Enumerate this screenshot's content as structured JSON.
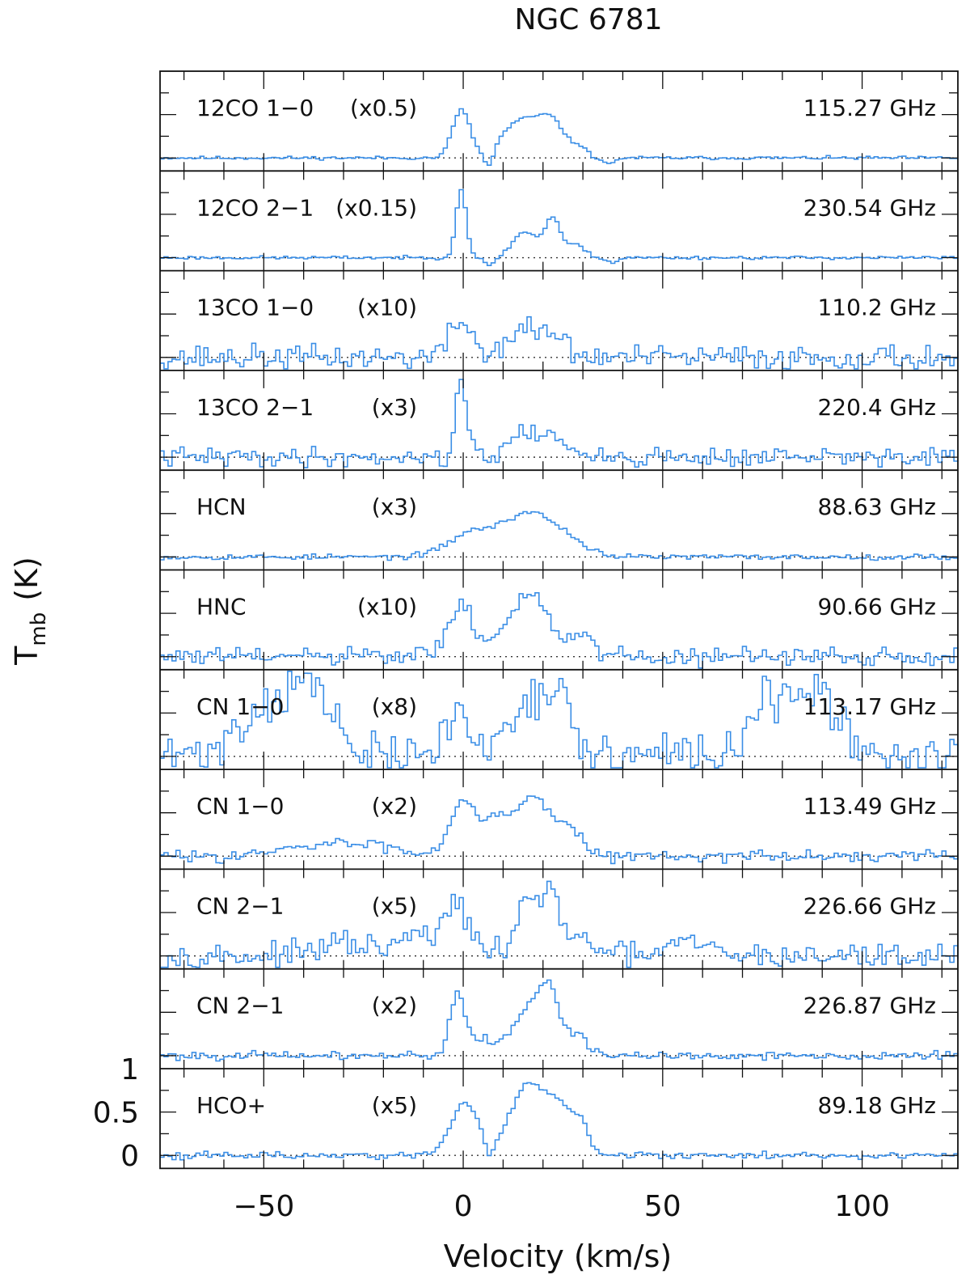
{
  "chart_data": {
    "type": "line",
    "title": "NGC 6781",
    "xlabel": "Velocity (km/s)",
    "ylabel": "T",
    "ylabel_subscript": "mb",
    "ylabel_unit": "(K)",
    "xlim": [
      -76,
      124
    ],
    "x_ticks": [
      "−50",
      "0",
      "50",
      "100"
    ],
    "x_tick_values": [
      -50,
      0,
      50,
      100
    ],
    "y_ticks_bottom_panel": [
      "1",
      "0.5",
      "0"
    ],
    "y_tick_values": [
      1,
      0.5,
      0
    ],
    "ylim": [
      -0.15,
      1.0
    ],
    "line_color": "#3a8ee6",
    "panels": [
      {
        "line": "12CO 1−0",
        "scale": "(x0.5)",
        "frequency": "115.27 GHz",
        "features": [
          [
            -1,
            0.55,
            2.2
          ],
          [
            14,
            0.42,
            5
          ],
          [
            22,
            0.35,
            3.5
          ],
          [
            29,
            0.1,
            1.5
          ]
        ],
        "absorption": [
          [
            6,
            0.2,
            1.2
          ],
          [
            36,
            0.08,
            1.2
          ]
        ],
        "noise": 0.012,
        "seed": 11
      },
      {
        "line": "12CO 2−1",
        "scale": "(x0.15)",
        "frequency": "230.54 GHz",
        "features": [
          [
            -1,
            0.78,
            1.3
          ],
          [
            15,
            0.3,
            3
          ],
          [
            22,
            0.45,
            2
          ],
          [
            28,
            0.15,
            2
          ]
        ],
        "absorption": [
          [
            6,
            0.1,
            1.2
          ],
          [
            37,
            0.06,
            1.2
          ]
        ],
        "noise": 0.012,
        "seed": 23
      },
      {
        "line": "13CO 1−0",
        "scale": "(x10)",
        "frequency": "110.2 GHz",
        "features": [
          [
            -1,
            0.42,
            2.8
          ],
          [
            15,
            0.32,
            5
          ],
          [
            23,
            0.18,
            2.5
          ]
        ],
        "absorption": [
          [
            6,
            0.08,
            1.2
          ]
        ],
        "noise": 0.09,
        "seed": 37
      },
      {
        "line": "13CO 2−1",
        "scale": "(x3)",
        "frequency": "220.4 GHz",
        "features": [
          [
            -1,
            0.8,
            1.2
          ],
          [
            2,
            0.15,
            3
          ],
          [
            15,
            0.32,
            3
          ],
          [
            22,
            0.3,
            2.2
          ]
        ],
        "absorption": [
          [
            6,
            0.08,
            1.2
          ]
        ],
        "noise": 0.07,
        "seed": 41
      },
      {
        "line": "HCN",
        "scale": "(x3)",
        "frequency": "88.63 GHz",
        "features": [
          [
            2,
            0.28,
            6
          ],
          [
            16,
            0.48,
            6
          ],
          [
            26,
            0.15,
            5
          ]
        ],
        "absorption": [],
        "noise": 0.02,
        "seed": 53
      },
      {
        "line": "HNC",
        "scale": "(x10)",
        "frequency": "90.66 GHz",
        "features": [
          [
            -1,
            0.55,
            3.5
          ],
          [
            16,
            0.75,
            5
          ],
          [
            29,
            0.25,
            2
          ]
        ],
        "absorption": [],
        "noise": 0.07,
        "seed": 61
      },
      {
        "line": "CN 1−0",
        "scale": "(x8)",
        "frequency": "113.17 GHz",
        "features": [
          [
            -48,
            0.6,
            8
          ],
          [
            -38,
            0.55,
            5
          ],
          [
            -2,
            0.5,
            3
          ],
          [
            16,
            0.7,
            5
          ],
          [
            24,
            0.5,
            3
          ],
          [
            74,
            0.55,
            3
          ],
          [
            84,
            0.65,
            6
          ],
          [
            92,
            0.35,
            3
          ]
        ],
        "absorption": [],
        "noise": 0.16,
        "seed": 71
      },
      {
        "line": "CN 1−0",
        "scale": "(x2)",
        "frequency": "113.49 GHz",
        "features": [
          [
            -1,
            0.55,
            3
          ],
          [
            8,
            0.45,
            5
          ],
          [
            18,
            0.62,
            4
          ],
          [
            27,
            0.3,
            3
          ],
          [
            -30,
            0.15,
            12
          ]
        ],
        "absorption": [],
        "noise": 0.04,
        "seed": 83
      },
      {
        "line": "CN 2−1",
        "scale": "(x5)",
        "frequency": "226.66 GHz",
        "features": [
          [
            -2,
            0.6,
            3
          ],
          [
            16,
            0.7,
            3
          ],
          [
            22,
            0.65,
            2
          ],
          [
            30,
            0.2,
            3
          ],
          [
            -30,
            0.15,
            6
          ],
          [
            -12,
            0.25,
            4
          ],
          [
            56,
            0.15,
            5
          ]
        ],
        "absorption": [],
        "noise": 0.09,
        "seed": 97
      },
      {
        "line": "CN 2−1",
        "scale": "(x2)",
        "frequency": "226.87 GHz",
        "features": [
          [
            -2,
            0.72,
            1.8
          ],
          [
            4,
            0.2,
            3
          ],
          [
            15,
            0.5,
            3.5
          ],
          [
            21,
            0.75,
            2.5
          ],
          [
            28,
            0.25,
            2.5
          ]
        ],
        "absorption": [],
        "noise": 0.03,
        "seed": 101
      },
      {
        "line": "HCO+",
        "scale": "(x5)",
        "frequency": "89.18 GHz",
        "features": [
          [
            0,
            0.6,
            3.5
          ],
          [
            16,
            0.82,
            4.5
          ],
          [
            24,
            0.45,
            3
          ],
          [
            29,
            0.32,
            2
          ]
        ],
        "absorption": [
          [
            6,
            0.2,
            0.9
          ]
        ],
        "noise": 0.025,
        "seed": 113
      }
    ]
  }
}
